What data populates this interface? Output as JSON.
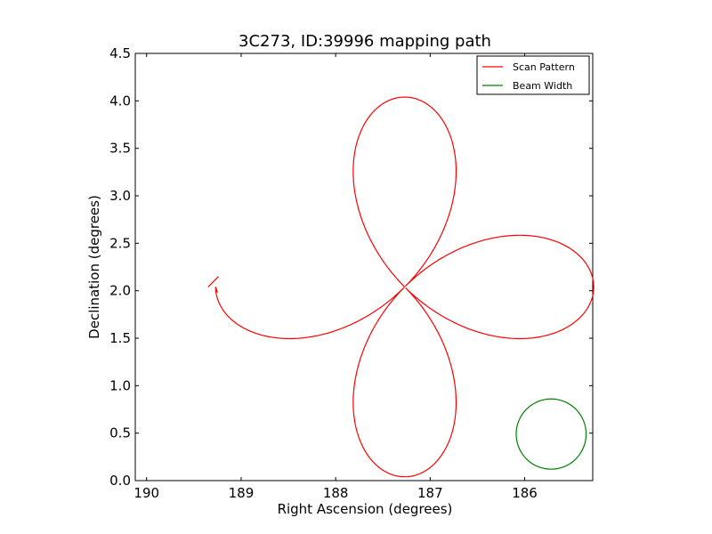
{
  "chart_data": {
    "type": "line",
    "title": "3C273, ID:39996 mapping path",
    "xlabel": "Right Ascension (degrees)",
    "ylabel": "Declination (degrees)",
    "xlim": [
      190.12,
      185.28
    ],
    "ylim": [
      0.0,
      4.5
    ],
    "x_ticks": [
      190,
      189,
      188,
      187,
      186
    ],
    "x_tick_labels": [
      "190",
      "189",
      "188",
      "187",
      "186"
    ],
    "y_ticks": [
      0.0,
      0.5,
      1.0,
      1.5,
      2.0,
      2.5,
      3.0,
      3.5,
      4.0,
      4.5
    ],
    "y_tick_labels": [
      "0.0",
      "0.5",
      "1.0",
      "1.5",
      "2.0",
      "2.5",
      "3.0",
      "3.5",
      "4.0",
      "4.5"
    ],
    "grid": false,
    "legend_position": "top-right",
    "series": [
      {
        "name": "Scan Pattern",
        "color": "#ff0000",
        "center": [
          187.27,
          2.04
        ],
        "extent": 2.0,
        "end": [
          189.25,
          1.98
        ],
        "start_stub": [
          [
            189.35,
            2.04
          ],
          [
            189.24,
            2.15
          ]
        ]
      },
      {
        "name": "Beam Width",
        "color": "#008000",
        "center": [
          185.72,
          0.49
        ],
        "radius": 0.37
      }
    ]
  }
}
